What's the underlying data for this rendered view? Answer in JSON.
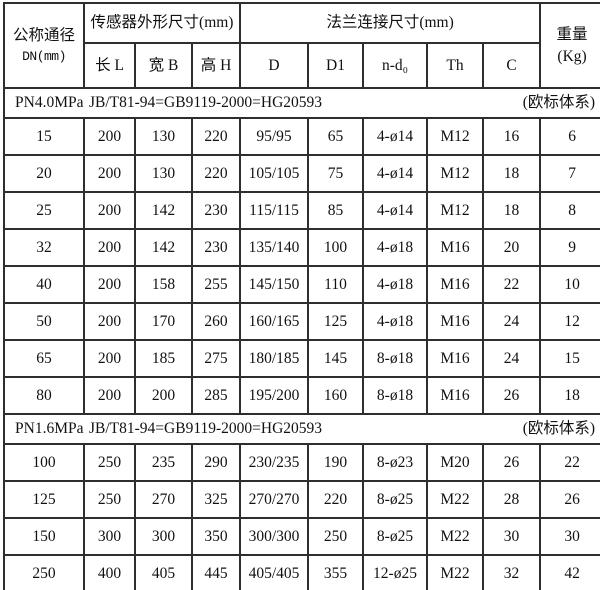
{
  "table": {
    "header": {
      "dn_line1": "公称通径",
      "dn_line2": "DN(mm)",
      "sensor_group": "传感器外形尺寸(mm)",
      "flange_group": "法兰连接尺寸(mm)",
      "weight_line1": "重量",
      "weight_line2": "(Kg)",
      "sub_columns": [
        "长 L",
        "宽 B",
        "高 H",
        "D",
        "D1",
        "n-d₀",
        "Th",
        "C"
      ]
    },
    "sections": [
      {
        "label": "PN4.0MPa",
        "standard": "JB/T81-94=GB9119-2000=HG20593",
        "note": "(欧标体系)",
        "rows": [
          [
            "15",
            "200",
            "130",
            "220",
            "95/95",
            "65",
            "4-ø14",
            "M12",
            "16",
            "6"
          ],
          [
            "20",
            "200",
            "130",
            "220",
            "105/105",
            "75",
            "4-ø14",
            "M12",
            "18",
            "7"
          ],
          [
            "25",
            "200",
            "142",
            "230",
            "115/115",
            "85",
            "4-ø14",
            "M12",
            "18",
            "8"
          ],
          [
            "32",
            "200",
            "142",
            "230",
            "135/140",
            "100",
            "4-ø18",
            "M16",
            "20",
            "9"
          ],
          [
            "40",
            "200",
            "158",
            "255",
            "145/150",
            "110",
            "4-ø18",
            "M16",
            "22",
            "10"
          ],
          [
            "50",
            "200",
            "170",
            "260",
            "160/165",
            "125",
            "4-ø18",
            "M16",
            "24",
            "12"
          ],
          [
            "65",
            "200",
            "185",
            "275",
            "180/185",
            "145",
            "8-ø18",
            "M16",
            "24",
            "15"
          ],
          [
            "80",
            "200",
            "200",
            "285",
            "195/200",
            "160",
            "8-ø18",
            "M16",
            "26",
            "18"
          ]
        ]
      },
      {
        "label": "PN1.6MPa",
        "standard": "JB/T81-94=GB9119-2000=HG20593",
        "note": "(欧标体系)",
        "rows": [
          [
            "100",
            "250",
            "235",
            "290",
            "230/235",
            "190",
            "8-ø23",
            "M20",
            "26",
            "22"
          ],
          [
            "125",
            "250",
            "270",
            "325",
            "270/270",
            "220",
            "8-ø25",
            "M22",
            "28",
            "26"
          ],
          [
            "150",
            "300",
            "300",
            "350",
            "300/300",
            "250",
            "8-ø25",
            "M22",
            "30",
            "30"
          ],
          [
            "250",
            "400",
            "405",
            "445",
            "405/405",
            "355",
            "12-ø25",
            "M22",
            "32",
            "42"
          ]
        ]
      }
    ]
  }
}
